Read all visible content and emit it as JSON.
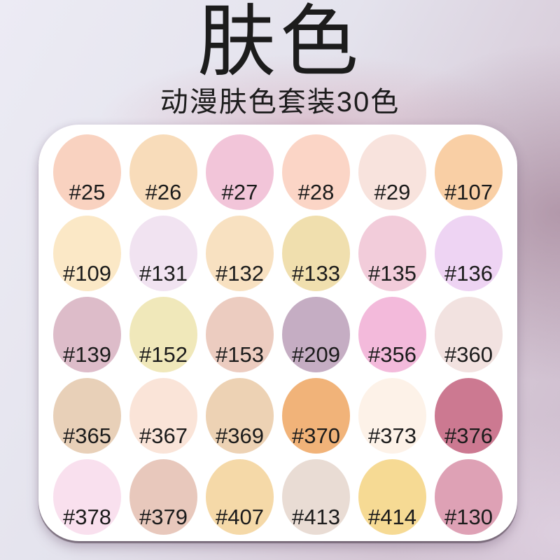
{
  "header": {
    "title": "肤色",
    "subtitle": "动漫肤色套装30色"
  },
  "palette": {
    "card_color": "#ffffff",
    "label_color": "#1b1b1b",
    "swatches": [
      {
        "label": "#25",
        "color": "#f9d2c0"
      },
      {
        "label": "#26",
        "color": "#f8dcba"
      },
      {
        "label": "#27",
        "color": "#f2c5d9"
      },
      {
        "label": "#28",
        "color": "#fbd5c6"
      },
      {
        "label": "#29",
        "color": "#f8e3dd"
      },
      {
        "label": "#107",
        "color": "#f9cfa5"
      },
      {
        "label": "#109",
        "color": "#fbe8c6"
      },
      {
        "label": "#131",
        "color": "#f1e3f1"
      },
      {
        "label": "#132",
        "color": "#f8e1c1"
      },
      {
        "label": "#133",
        "color": "#f0dfae"
      },
      {
        "label": "#135",
        "color": "#f2ccda"
      },
      {
        "label": "#136",
        "color": "#eed4f3"
      },
      {
        "label": "#139",
        "color": "#ddbcc9"
      },
      {
        "label": "#152",
        "color": "#f0e8ba"
      },
      {
        "label": "#153",
        "color": "#ecccc0"
      },
      {
        "label": "#209",
        "color": "#c5adc3"
      },
      {
        "label": "#356",
        "color": "#f3badb"
      },
      {
        "label": "#360",
        "color": "#f2e2e0"
      },
      {
        "label": "#365",
        "color": "#e8d0b8"
      },
      {
        "label": "#367",
        "color": "#fae4d8"
      },
      {
        "label": "#369",
        "color": "#edd2b4"
      },
      {
        "label": "#370",
        "color": "#f1b379"
      },
      {
        "label": "#373",
        "color": "#fdf2e8"
      },
      {
        "label": "#376",
        "color": "#cc7991"
      },
      {
        "label": "#378",
        "color": "#f9e0ee"
      },
      {
        "label": "#379",
        "color": "#e8c8bc"
      },
      {
        "label": "#407",
        "color": "#f5d9a8"
      },
      {
        "label": "#413",
        "color": "#e9dcd4"
      },
      {
        "label": "#414",
        "color": "#f6da94"
      },
      {
        "label": "#130",
        "color": "#dea1b5"
      }
    ]
  },
  "background": {
    "top_left": "#ecebf4",
    "right_mauve": "#bfa9b5",
    "bottom_strip": "#d2c5d7",
    "pink_glow": "#d29bac"
  }
}
